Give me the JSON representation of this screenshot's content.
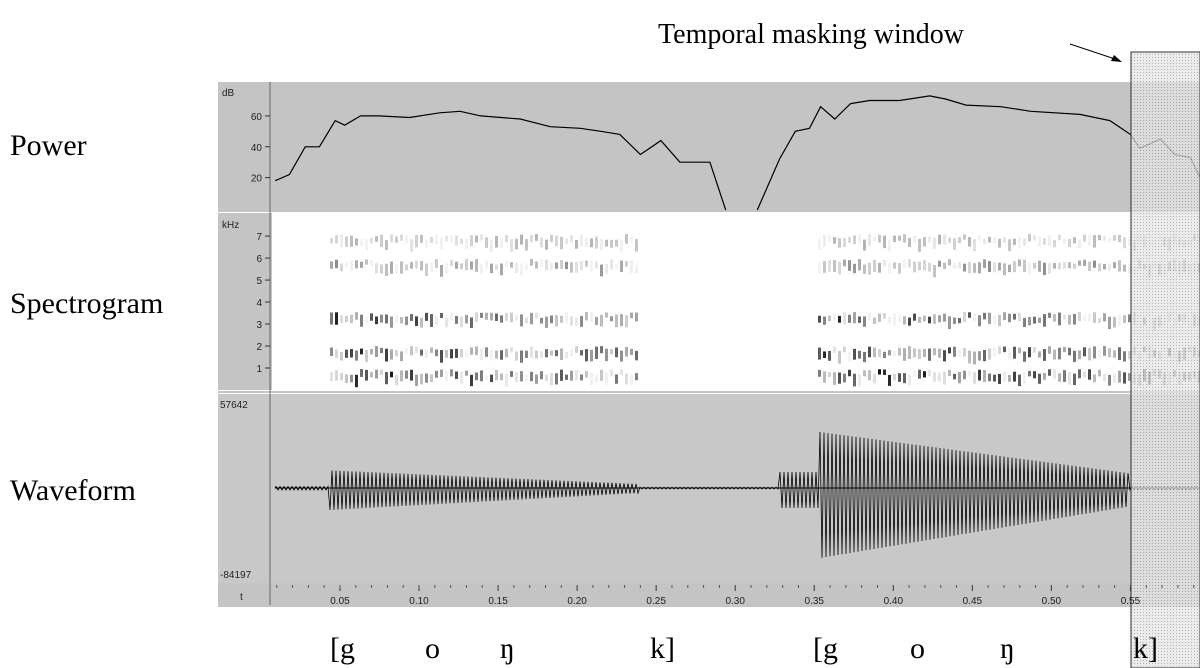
{
  "labels": {
    "power": "Power",
    "spectrogram": "Spectrogram",
    "waveform": "Waveform"
  },
  "annotation": "Temporal masking window",
  "segments": [
    "[g",
    "o",
    "ŋ",
    "k]",
    "[g",
    "o",
    "ŋ",
    "k]"
  ],
  "chart_data": [
    {
      "type": "line",
      "y_label": "dB",
      "x_label": "t",
      "x": [
        0.009,
        0.018,
        0.028,
        0.037,
        0.047,
        0.053,
        0.063,
        0.075,
        0.094,
        0.113,
        0.126,
        0.139,
        0.164,
        0.183,
        0.202,
        0.215,
        0.227,
        0.24,
        0.253,
        0.265,
        0.284,
        0.294,
        0.304,
        0.314,
        0.328,
        0.338,
        0.347,
        0.354,
        0.363,
        0.373,
        0.385,
        0.404,
        0.423,
        0.433,
        0.446,
        0.468,
        0.487,
        0.518,
        0.537,
        0.55,
        0.556,
        0.569,
        0.578,
        0.588,
        0.594
      ],
      "values": [
        18,
        22,
        40,
        40,
        57,
        54,
        60,
        60,
        59,
        62,
        63,
        60,
        58,
        53,
        52,
        50,
        48,
        35,
        44,
        30,
        30,
        -1,
        null,
        -1,
        32,
        50,
        52,
        66,
        58,
        68,
        70,
        70,
        73,
        71,
        67,
        66,
        63,
        61,
        57,
        48,
        39,
        45,
        35,
        33,
        20
      ],
      "color": "#000000",
      "xlim": [
        0.007,
        0.594
      ],
      "ylim": [
        -1,
        82
      ],
      "yticks": [
        20,
        40,
        60
      ],
      "xticks": [
        0.05,
        {
          "value": 0.1,
          "label": "0.10"
        },
        0.15,
        {
          "value": 0.2,
          "label": "0.20"
        },
        0.25,
        {
          "value": 0.3,
          "label": "0.30"
        },
        0.35,
        {
          "value": 0.4,
          "label": "0.40"
        },
        0.45,
        {
          "value": 0.5,
          "label": "0.50"
        },
        0.55
      ]
    },
    {
      "type": "spectrogram",
      "y_label": "kHz",
      "ylim": [
        0,
        8.05
      ],
      "yticks": [
        1,
        2,
        3,
        4,
        5,
        6,
        7
      ]
    },
    {
      "type": "waveform",
      "ylim": [
        -84197,
        57642
      ],
      "yticks": [
        -84197,
        57642
      ]
    }
  ]
}
